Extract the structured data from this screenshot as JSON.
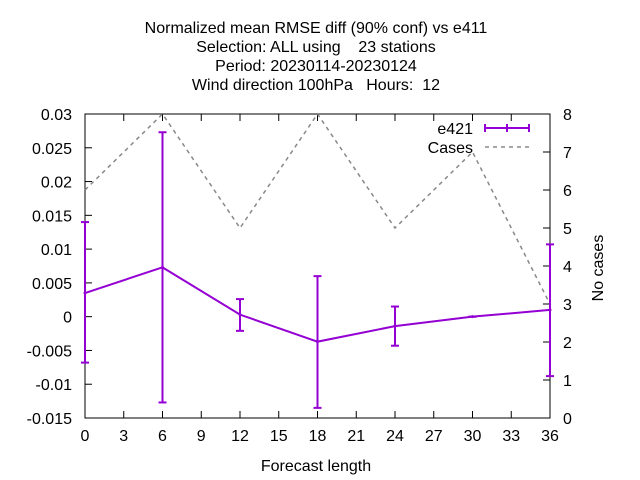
{
  "chart_data": {
    "type": "line",
    "title_lines": [
      "Normalized mean RMSE diff (90% conf) vs e411",
      "Selection: ALL using    23 stations",
      "Period: 20230114-20230124",
      "Wind direction 100hPa   Hours:  12"
    ],
    "xlabel": "Forecast length",
    "ylabel": "",
    "y2label": "No cases",
    "x_ticks": [
      "0",
      "3",
      "6",
      "9",
      "12",
      "15",
      "18",
      "21",
      "24",
      "27",
      "30",
      "33",
      "36"
    ],
    "y_ticks": [
      "0.03",
      "0.025",
      "0.02",
      "0.015",
      "0.01",
      "0.005",
      "0",
      "-0.005",
      "-0.01",
      "-0.015"
    ],
    "y2_ticks": [
      "8",
      "7",
      "6",
      "5",
      "4",
      "3",
      "2",
      "1",
      "0"
    ],
    "xlim": [
      0,
      36
    ],
    "ylim": [
      -0.015,
      0.03
    ],
    "y2lim": [
      0,
      8
    ],
    "grid": false,
    "legend_position": "top-right",
    "series": [
      {
        "name": "e421",
        "axis": "left",
        "color": "#9400d3",
        "style": "solid-errorbars",
        "x": [
          0,
          6,
          12,
          18,
          24,
          30,
          36
        ],
        "y": [
          0.0035,
          0.0073,
          0.0003,
          -0.0037,
          -0.0014,
          0.0,
          0.001
        ],
        "err_low": [
          -0.0068,
          -0.0127,
          -0.0021,
          -0.0135,
          -0.0043,
          0.0,
          -0.0088
        ],
        "err_high": [
          0.014,
          0.0273,
          0.0026,
          0.006,
          0.0015,
          0.0,
          0.0107
        ]
      },
      {
        "name": "Cases",
        "axis": "right",
        "color": "#888888",
        "style": "dashed",
        "x": [
          0,
          6,
          12,
          18,
          24,
          30,
          36
        ],
        "y": [
          6,
          8,
          5,
          8,
          5,
          7,
          3
        ]
      }
    ]
  }
}
